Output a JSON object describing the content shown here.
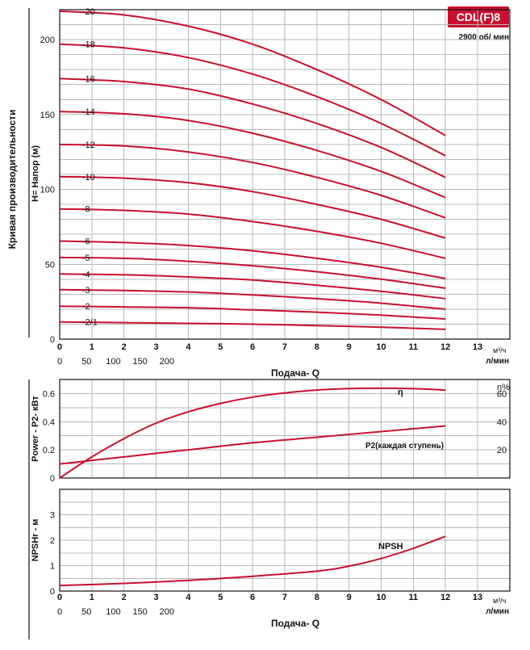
{
  "header": {
    "model_badge": "CDL(F)8",
    "speed_label": "2900 об/ мин",
    "badge_color": "#c8102e"
  },
  "side_label": "Кривая производительности",
  "colors": {
    "curve": "#c8102e",
    "grid": "#b8b8b8",
    "axis": "#111111"
  },
  "chart_data": [
    {
      "type": "line",
      "panel": "head",
      "ylabel": "H= Напор (м)",
      "xlim": [
        0,
        14
      ],
      "ylim": [
        0,
        220
      ],
      "x_ticks_m3h": [
        0,
        1,
        2,
        3,
        4,
        5,
        6,
        7,
        8,
        9,
        10,
        11,
        12,
        13
      ],
      "y_ticks": [
        0,
        50,
        100,
        150,
        200
      ],
      "x_unit_m3h": "м³/ч",
      "x_unit_lmin": "л/мин",
      "lmin_ticks": [
        0,
        50,
        100,
        150,
        200
      ],
      "xlabel": "Подача- Q",
      "series": [
        {
          "name": "-20",
          "x": [
            0,
            2,
            4,
            6,
            8,
            10,
            12
          ],
          "values": [
            219,
            216.5,
            209,
            197,
            180,
            160,
            136
          ]
        },
        {
          "name": "-18",
          "x": [
            0,
            2,
            4,
            6,
            8,
            10,
            12
          ],
          "values": [
            197,
            194.5,
            188,
            177,
            162,
            144,
            122.5
          ]
        },
        {
          "name": "-16",
          "x": [
            0,
            2,
            4,
            6,
            8,
            10,
            12
          ],
          "values": [
            174,
            172,
            167,
            157,
            144,
            128,
            108
          ]
        },
        {
          "name": "-14",
          "x": [
            0,
            2,
            4,
            6,
            8,
            10,
            12
          ],
          "values": [
            152,
            150.5,
            146,
            137.5,
            126,
            112,
            94.5
          ]
        },
        {
          "name": "-12",
          "x": [
            0,
            2,
            4,
            6,
            8,
            10,
            12
          ],
          "values": [
            130,
            129,
            125,
            118,
            108,
            96,
            81
          ]
        },
        {
          "name": "-10",
          "x": [
            0,
            2,
            4,
            6,
            8,
            10,
            12
          ],
          "values": [
            108.5,
            107.5,
            104.5,
            98.5,
            90,
            80,
            67.5
          ]
        },
        {
          "name": "-8",
          "x": [
            0,
            2,
            4,
            6,
            8,
            10,
            12
          ],
          "values": [
            87,
            86,
            83.5,
            78.5,
            72,
            64,
            54
          ]
        },
        {
          "name": "-6",
          "x": [
            0,
            2,
            4,
            6,
            8,
            10,
            12
          ],
          "values": [
            65.5,
            64.5,
            62.5,
            59,
            54,
            48,
            40.5
          ]
        },
        {
          "name": "-5",
          "x": [
            0,
            2,
            4,
            6,
            8,
            10,
            12
          ],
          "values": [
            54.5,
            54,
            52,
            49,
            45,
            40,
            34
          ]
        },
        {
          "name": "-4",
          "x": [
            0,
            2,
            4,
            6,
            8,
            10,
            12
          ],
          "values": [
            43.5,
            43,
            41.5,
            39.5,
            36,
            32,
            27
          ]
        },
        {
          "name": "-3",
          "x": [
            0,
            2,
            4,
            6,
            8,
            10,
            12
          ],
          "values": [
            33,
            32.5,
            31.5,
            29.5,
            27,
            24,
            20
          ]
        },
        {
          "name": "-2",
          "x": [
            0,
            2,
            4,
            6,
            8,
            10,
            12
          ],
          "values": [
            22,
            21.5,
            21,
            19.5,
            18,
            16,
            13.5
          ]
        },
        {
          "name": "-2/1",
          "x": [
            0,
            2,
            4,
            6,
            8,
            10,
            12
          ],
          "values": [
            11.5,
            11,
            10.5,
            10,
            9,
            8,
            6.5
          ]
        }
      ]
    },
    {
      "type": "line",
      "panel": "power",
      "ylabel": "Power - P2- кВт",
      "ylim": [
        0,
        0.7
      ],
      "y_ticks": [
        0,
        0.2,
        0.4,
        0.6
      ],
      "y_tick_labels": [
        "0",
        "0.2",
        "0.4",
        "0.6"
      ],
      "y2label": "η%",
      "y2_ticks": [
        20,
        40,
        60
      ],
      "y2lim": [
        0,
        70
      ],
      "series": [
        {
          "name": "P2(каждая ступень)",
          "axis": "left",
          "x": [
            0,
            1,
            2,
            4,
            6,
            8,
            10,
            12
          ],
          "values": [
            0.1,
            0.125,
            0.15,
            0.2,
            0.25,
            0.29,
            0.33,
            0.37
          ]
        },
        {
          "name": "η",
          "axis": "right",
          "x": [
            0,
            1,
            2,
            3,
            4,
            5,
            6,
            7,
            8,
            9,
            10,
            11,
            12
          ],
          "values": [
            0,
            15,
            28,
            39,
            47,
            53,
            57.5,
            60.5,
            62.5,
            63.5,
            63.8,
            63.5,
            62.5
          ]
        }
      ]
    },
    {
      "type": "line",
      "panel": "npsh",
      "ylabel": "NPSHr - м",
      "ylim": [
        0,
        4
      ],
      "y_ticks": [
        0,
        1,
        2,
        3
      ],
      "x_ticks_m3h": [
        0,
        1,
        2,
        3,
        4,
        5,
        6,
        7,
        8,
        9,
        10,
        11,
        12,
        13
      ],
      "lmin_ticks": [
        0,
        50,
        100,
        150,
        200
      ],
      "x_unit_m3h": "м³/ч",
      "x_unit_lmin": "л/мин",
      "xlabel": "Подача- Q",
      "series": [
        {
          "name": "NPSH",
          "x": [
            0,
            2,
            4,
            6,
            8,
            9,
            10,
            11,
            12
          ],
          "values": [
            0.22,
            0.3,
            0.42,
            0.58,
            0.78,
            0.98,
            1.28,
            1.68,
            2.15
          ]
        }
      ]
    }
  ]
}
